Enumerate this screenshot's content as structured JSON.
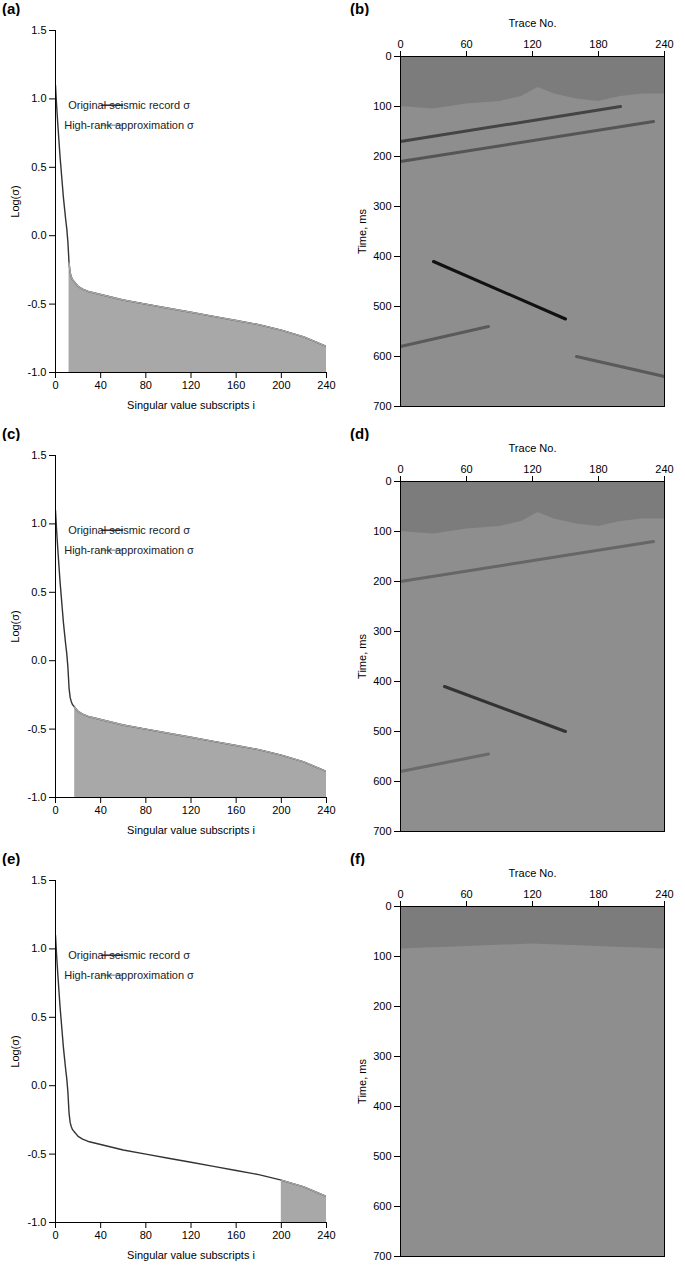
{
  "chart_data": [
    {
      "type": "line",
      "title": "(a)",
      "xlabel": "Singular value subscripts i",
      "ylabel": "Log(σ)",
      "xlim": [
        0,
        240
      ],
      "xticks": [
        0,
        40,
        80,
        120,
        160,
        200,
        240
      ],
      "ylim": [
        -1,
        1.5
      ],
      "yticks": [
        {
          "value": -1,
          "label": "-1.0"
        },
        -0.5,
        {
          "value": 0,
          "label": "0.0"
        },
        0.5,
        {
          "value": 1,
          "label": "1.0"
        },
        1.5
      ],
      "legend": "upper center",
      "x": [
        0,
        1,
        2,
        3,
        4,
        5,
        6,
        7,
        8,
        9,
        10,
        11,
        12,
        13,
        14,
        15,
        16,
        17,
        18,
        20,
        24,
        30,
        40,
        60,
        80,
        100,
        120,
        140,
        160,
        180,
        200,
        220,
        240
      ],
      "series": [
        {
          "name": "Original seismic record σ",
          "color": "#333333",
          "type": "line",
          "values": [
            1.1,
            0.95,
            0.82,
            0.7,
            0.58,
            0.48,
            0.38,
            0.28,
            0.2,
            0.12,
            0.05,
            -0.05,
            -0.2,
            -0.27,
            -0.3,
            -0.32,
            -0.33,
            -0.34,
            -0.35,
            -0.37,
            -0.39,
            -0.41,
            -0.43,
            -0.47,
            -0.5,
            -0.53,
            -0.56,
            -0.59,
            -0.62,
            -0.65,
            -0.69,
            -0.74,
            -0.81
          ]
        },
        {
          "name": "High-rank approximation σ",
          "color": "#a8a8a8",
          "type": "area",
          "values": [
            null,
            null,
            null,
            null,
            null,
            null,
            null,
            null,
            null,
            null,
            null,
            null,
            -0.2,
            -0.27,
            -0.3,
            -0.32,
            -0.33,
            -0.34,
            -0.35,
            -0.37,
            -0.39,
            -0.41,
            -0.43,
            -0.47,
            -0.5,
            -0.53,
            -0.56,
            -0.59,
            -0.62,
            -0.65,
            -0.69,
            -0.74,
            -0.81
          ]
        }
      ]
    },
    {
      "type": "image",
      "title": "(b)",
      "xlabel": "Trace No.",
      "ylabel": "Time, ms",
      "xlim": [
        0,
        240
      ],
      "xticks": [
        0,
        60,
        120,
        180,
        240
      ],
      "ylim": [
        0,
        700
      ],
      "yticks": [
        0,
        100,
        200,
        300,
        400,
        500,
        600,
        700
      ],
      "color": "#7c7c7c",
      "first_break": {
        "x": [
          0,
          30,
          60,
          90,
          110,
          125,
          140,
          160,
          180,
          200,
          220,
          240
        ],
        "y": [
          100,
          105,
          95,
          90,
          80,
          62,
          75,
          85,
          90,
          80,
          75,
          75
        ]
      },
      "events": [
        {
          "x": [
            30,
            150
          ],
          "y": [
            410,
            525
          ],
          "color": "#111111"
        },
        {
          "x": [
            0,
            200
          ],
          "y": [
            170,
            100
          ],
          "color": "#444444"
        },
        {
          "x": [
            0,
            230
          ],
          "y": [
            210,
            130
          ],
          "color": "#555555"
        },
        {
          "x": [
            0,
            80
          ],
          "y": [
            580,
            540
          ],
          "color": "#5a5a5a"
        },
        {
          "x": [
            160,
            240
          ],
          "y": [
            600,
            640
          ],
          "color": "#5a5a5a"
        }
      ]
    },
    {
      "type": "line",
      "title": "(c)",
      "xlabel": "Singular value subscripts i",
      "ylabel": "Log(σ)",
      "xlim": [
        0,
        240
      ],
      "xticks": [
        0,
        40,
        80,
        120,
        160,
        200,
        240
      ],
      "ylim": [
        -1,
        1.5
      ],
      "yticks": [
        {
          "value": -1,
          "label": "-1.0"
        },
        -0.5,
        {
          "value": 0,
          "label": "0.0"
        },
        0.5,
        {
          "value": 1,
          "label": "1.0"
        },
        1.5
      ],
      "legend": "upper center",
      "x": [
        0,
        1,
        2,
        3,
        4,
        5,
        6,
        7,
        8,
        9,
        10,
        11,
        12,
        13,
        14,
        15,
        16,
        17,
        18,
        20,
        24,
        30,
        40,
        60,
        80,
        100,
        120,
        140,
        160,
        180,
        200,
        220,
        240
      ],
      "series": [
        {
          "name": "Original seismic record σ",
          "color": "#333333",
          "type": "line",
          "values": [
            1.1,
            0.95,
            0.82,
            0.7,
            0.58,
            0.48,
            0.38,
            0.28,
            0.2,
            0.12,
            0.05,
            -0.05,
            -0.2,
            -0.27,
            -0.3,
            -0.32,
            -0.33,
            -0.34,
            -0.35,
            -0.37,
            -0.39,
            -0.41,
            -0.43,
            -0.47,
            -0.5,
            -0.53,
            -0.56,
            -0.59,
            -0.62,
            -0.65,
            -0.69,
            -0.74,
            -0.81
          ]
        },
        {
          "name": "High-rank approximation σ",
          "color": "#a8a8a8",
          "type": "area",
          "values": [
            null,
            null,
            null,
            null,
            null,
            null,
            null,
            null,
            null,
            null,
            null,
            null,
            null,
            null,
            null,
            null,
            null,
            -0.34,
            -0.35,
            -0.37,
            -0.39,
            -0.41,
            -0.43,
            -0.47,
            -0.5,
            -0.53,
            -0.56,
            -0.59,
            -0.62,
            -0.65,
            -0.69,
            -0.74,
            -0.81
          ]
        }
      ]
    },
    {
      "type": "image",
      "title": "(d)",
      "xlabel": "Trace No.",
      "ylabel": "Time, ms",
      "xlim": [
        0,
        240
      ],
      "xticks": [
        0,
        60,
        120,
        180,
        240
      ],
      "ylim": [
        0,
        700
      ],
      "yticks": [
        0,
        100,
        200,
        300,
        400,
        500,
        600,
        700
      ],
      "color": "#7c7c7c",
      "first_break": {
        "x": [
          0,
          30,
          60,
          90,
          110,
          125,
          140,
          160,
          180,
          200,
          220,
          240
        ],
        "y": [
          100,
          105,
          95,
          90,
          80,
          62,
          75,
          85,
          90,
          80,
          75,
          75
        ]
      },
      "events": [
        {
          "x": [
            40,
            150
          ],
          "y": [
            410,
            500
          ],
          "color": "#333333"
        },
        {
          "x": [
            0,
            230
          ],
          "y": [
            200,
            120
          ],
          "color": "#666666"
        },
        {
          "x": [
            0,
            80
          ],
          "y": [
            580,
            545
          ],
          "color": "#6a6a6a"
        }
      ]
    },
    {
      "type": "line",
      "title": "(e)",
      "xlabel": "Singular value subscripts i",
      "ylabel": "Log(σ)",
      "xlim": [
        0,
        240
      ],
      "xticks": [
        0,
        40,
        80,
        120,
        160,
        200,
        240
      ],
      "ylim": [
        -1,
        1.5
      ],
      "yticks": [
        {
          "value": -1,
          "label": "-1.0"
        },
        -0.5,
        {
          "value": 0,
          "label": "0.0"
        },
        0.5,
        {
          "value": 1,
          "label": "1.0"
        },
        1.5
      ],
      "legend": "upper center",
      "x": [
        0,
        1,
        2,
        3,
        4,
        5,
        6,
        7,
        8,
        9,
        10,
        11,
        12,
        13,
        14,
        15,
        16,
        17,
        18,
        20,
        24,
        30,
        40,
        60,
        80,
        100,
        120,
        140,
        160,
        180,
        200,
        220,
        240
      ],
      "series": [
        {
          "name": "Original seismic record σ",
          "color": "#333333",
          "type": "line",
          "values": [
            1.1,
            0.95,
            0.82,
            0.7,
            0.58,
            0.48,
            0.38,
            0.28,
            0.2,
            0.12,
            0.05,
            -0.05,
            -0.2,
            -0.27,
            -0.3,
            -0.32,
            -0.33,
            -0.34,
            -0.35,
            -0.37,
            -0.39,
            -0.41,
            -0.43,
            -0.47,
            -0.5,
            -0.53,
            -0.56,
            -0.59,
            -0.62,
            -0.65,
            -0.69,
            -0.74,
            -0.81
          ]
        },
        {
          "name": "High-rank approximation σ",
          "color": "#a8a8a8",
          "type": "area",
          "values": [
            null,
            null,
            null,
            null,
            null,
            null,
            null,
            null,
            null,
            null,
            null,
            null,
            null,
            null,
            null,
            null,
            null,
            null,
            null,
            null,
            null,
            null,
            null,
            null,
            null,
            null,
            null,
            null,
            null,
            null,
            -0.69,
            -0.74,
            -0.81
          ]
        }
      ]
    },
    {
      "type": "image",
      "title": "(f)",
      "xlabel": "Trace No.",
      "ylabel": "Time, ms",
      "xlim": [
        0,
        240
      ],
      "xticks": [
        0,
        60,
        120,
        180,
        240
      ],
      "ylim": [
        0,
        700
      ],
      "yticks": [
        0,
        100,
        200,
        300,
        400,
        500,
        600,
        700
      ],
      "color": "#7c7c7c",
      "first_break": {
        "x": [
          0,
          60,
          120,
          180,
          240
        ],
        "y": [
          85,
          80,
          75,
          80,
          85
        ]
      },
      "events": []
    }
  ]
}
